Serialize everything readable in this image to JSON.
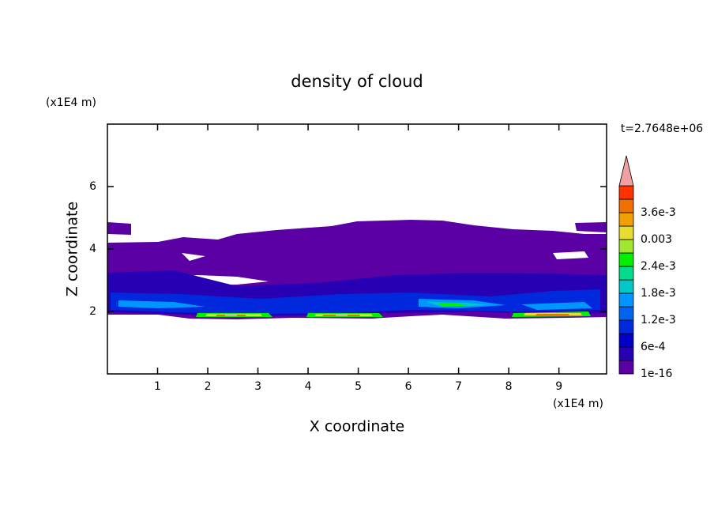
{
  "chart_data": {
    "type": "contour",
    "title": "density of cloud",
    "x_label": "X coordinate",
    "y_label": "Z coordinate",
    "x_unit": "(x1E4 m)",
    "y_unit": "(x1E4 m)",
    "time_label": "t=2.7648e+06",
    "xlim": [
      0,
      9.95
    ],
    "ylim": [
      0,
      8
    ],
    "xticks": [
      1,
      2,
      3,
      4,
      5,
      6,
      7,
      8,
      9
    ],
    "yticks": [
      2,
      4,
      6
    ],
    "colorbar": {
      "levels": [
        1e-16,
        {
          "value": 0.0006,
          "label": "6e-4"
        },
        {
          "value": 0.0012,
          "label": "1.2e-3"
        },
        {
          "value": 0.0018,
          "label": "1.8e-3"
        },
        {
          "value": 0.0024,
          "label": "2.4e-3"
        },
        0.003,
        {
          "value": 0.0036,
          "label": "3.6e-3"
        }
      ],
      "colors": [
        "#5a00a5",
        "#2800b4",
        "#0000c8",
        "#0028dc",
        "#0064f0",
        "#0096ff",
        "#00c8c8",
        "#00dc8c",
        "#00f000",
        "#a0e632",
        "#e6dc32",
        "#f0a000",
        "#f07000",
        "#ff3200"
      ],
      "extend_color": "#f0a0a0"
    }
  }
}
